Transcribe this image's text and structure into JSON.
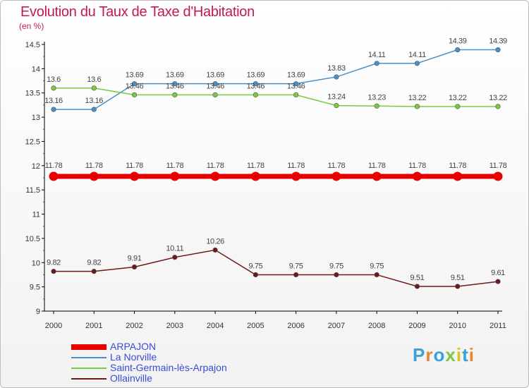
{
  "title": "Evolution du Taux de Taxe d'Habitation",
  "unit_label": "(en %)",
  "logo_text": "Proxiti",
  "colors": {
    "title": "#c2185b",
    "axis": "#000000",
    "legend_text": "#3b4bd8"
  },
  "chart_data": {
    "type": "line",
    "title": "Evolution du Taux de Taxe d'Habitation",
    "ylabel": "(en %)",
    "xlabel": "",
    "x": [
      "2000",
      "2001",
      "2002",
      "2003",
      "2004",
      "2005",
      "2006",
      "2007",
      "2008",
      "2009",
      "2010",
      "2011"
    ],
    "ylim": [
      9,
      14.5
    ],
    "yticks": [
      "9",
      "9.5",
      "10",
      "10.5",
      "11",
      "11.5",
      "12",
      "12.5",
      "13",
      "13.5",
      "14",
      "14.5"
    ],
    "grid": false,
    "legend_position": "bottom-left",
    "series": [
      {
        "name": "ARPAJON",
        "color": "#e80000",
        "values": [
          11.78,
          11.78,
          11.78,
          11.78,
          11.78,
          11.78,
          11.78,
          11.78,
          11.78,
          11.78,
          11.78,
          11.78
        ],
        "labels": [
          "11.78",
          "11.78",
          "11.78",
          "11.78",
          "11.78",
          "11.78",
          "11.78",
          "11.78",
          "11.78",
          "11.78",
          "11.78",
          "11.78"
        ]
      },
      {
        "name": "La Norville",
        "color": "#4a90c8",
        "values": [
          13.16,
          13.16,
          13.69,
          13.69,
          13.69,
          13.69,
          13.69,
          13.83,
          14.11,
          14.11,
          14.39,
          14.39
        ],
        "labels": [
          "13.16",
          "13.16",
          "13.69",
          "13.69",
          "13.69",
          "13.69",
          "13.69",
          "13.83",
          "14.11",
          "14.11",
          "14.39",
          "14.39"
        ]
      },
      {
        "name": "Saint-Germain-lès-Arpajon",
        "color": "#7ac943",
        "values": [
          13.6,
          13.6,
          13.46,
          13.46,
          13.46,
          13.46,
          13.46,
          13.24,
          13.23,
          13.22,
          13.22,
          13.22
        ],
        "labels": [
          "13.6",
          "13.6",
          "13.46",
          "13.46",
          "13.46",
          "13.46",
          "13.46",
          "13.24",
          "13.23",
          "13.22",
          "13.22",
          "13.22"
        ]
      },
      {
        "name": "Ollainville",
        "color": "#6b1a1a",
        "values": [
          9.82,
          9.82,
          9.91,
          10.11,
          10.26,
          9.75,
          9.75,
          9.75,
          9.75,
          9.51,
          9.51,
          9.61
        ],
        "labels": [
          "9.82",
          "9.82",
          "9.91",
          "10.11",
          "10.26",
          "9.75",
          "9.75",
          "9.75",
          "9.75",
          "9.51",
          "9.51",
          "9.61"
        ]
      }
    ]
  }
}
